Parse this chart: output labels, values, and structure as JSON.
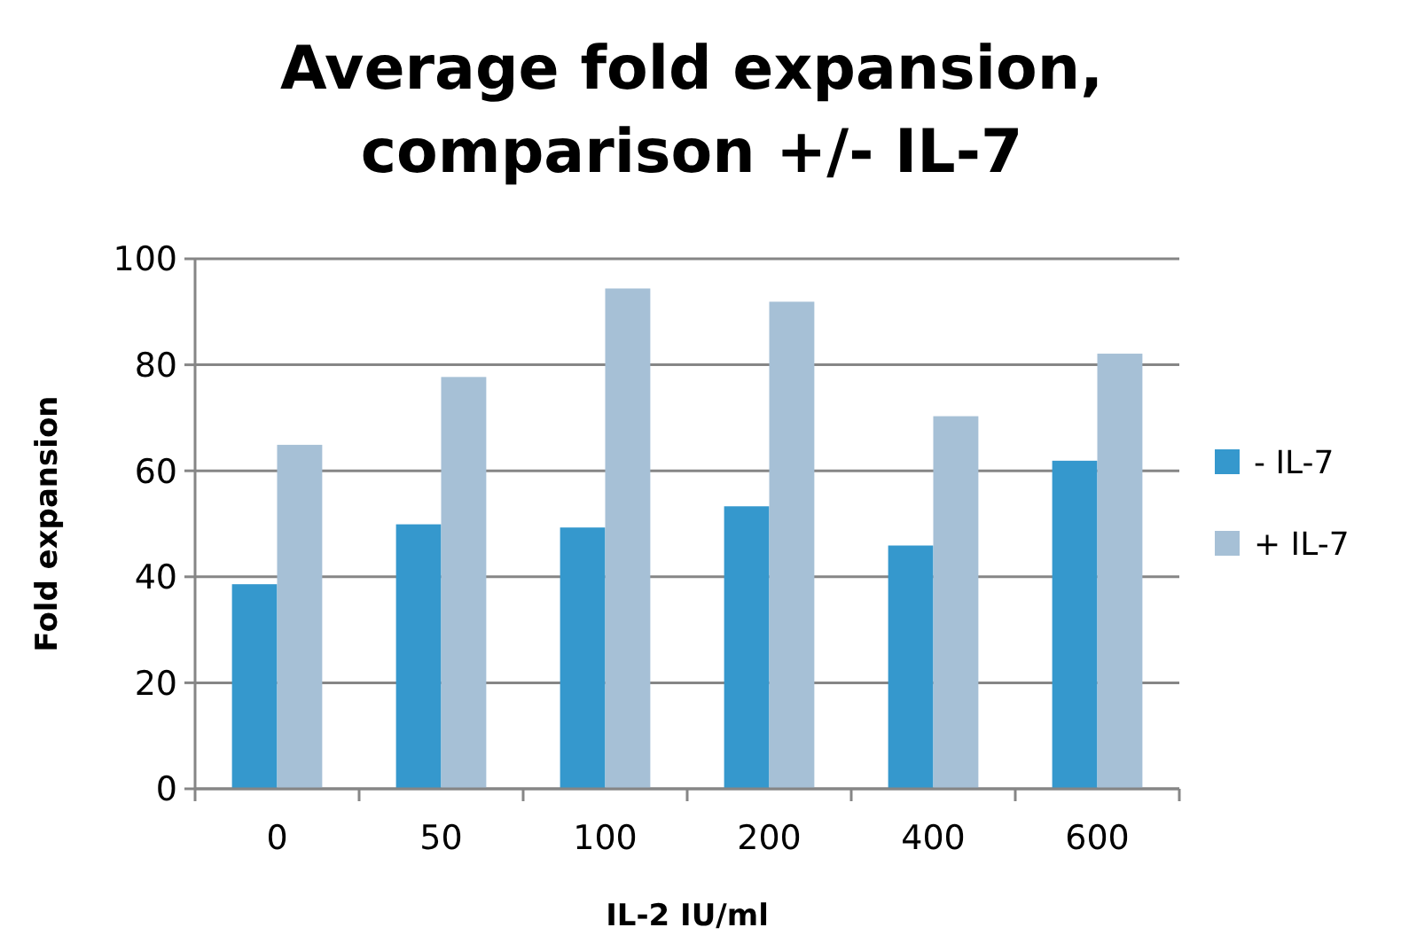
{
  "chart_data": {
    "type": "bar",
    "title": "Average fold expansion, comparison +/- IL-7",
    "xlabel": "IL-2 IU/ml",
    "ylabel": "Fold expansion",
    "categories": [
      "0",
      "50",
      "100",
      "200",
      "400",
      "600"
    ],
    "series": [
      {
        "name": "- IL-7",
        "color": "#3598cd",
        "values": [
          38.6,
          49.9,
          49.3,
          53.3,
          45.9,
          61.9
        ]
      },
      {
        "name": "+ IL-7",
        "color": "#a6c0d6",
        "values": [
          64.9,
          77.7,
          94.4,
          91.9,
          70.3,
          82.1
        ]
      }
    ],
    "ylim": [
      0,
      100
    ],
    "yticks": [
      0,
      20,
      40,
      60,
      80,
      100
    ],
    "grid": "y",
    "legend": "right"
  }
}
